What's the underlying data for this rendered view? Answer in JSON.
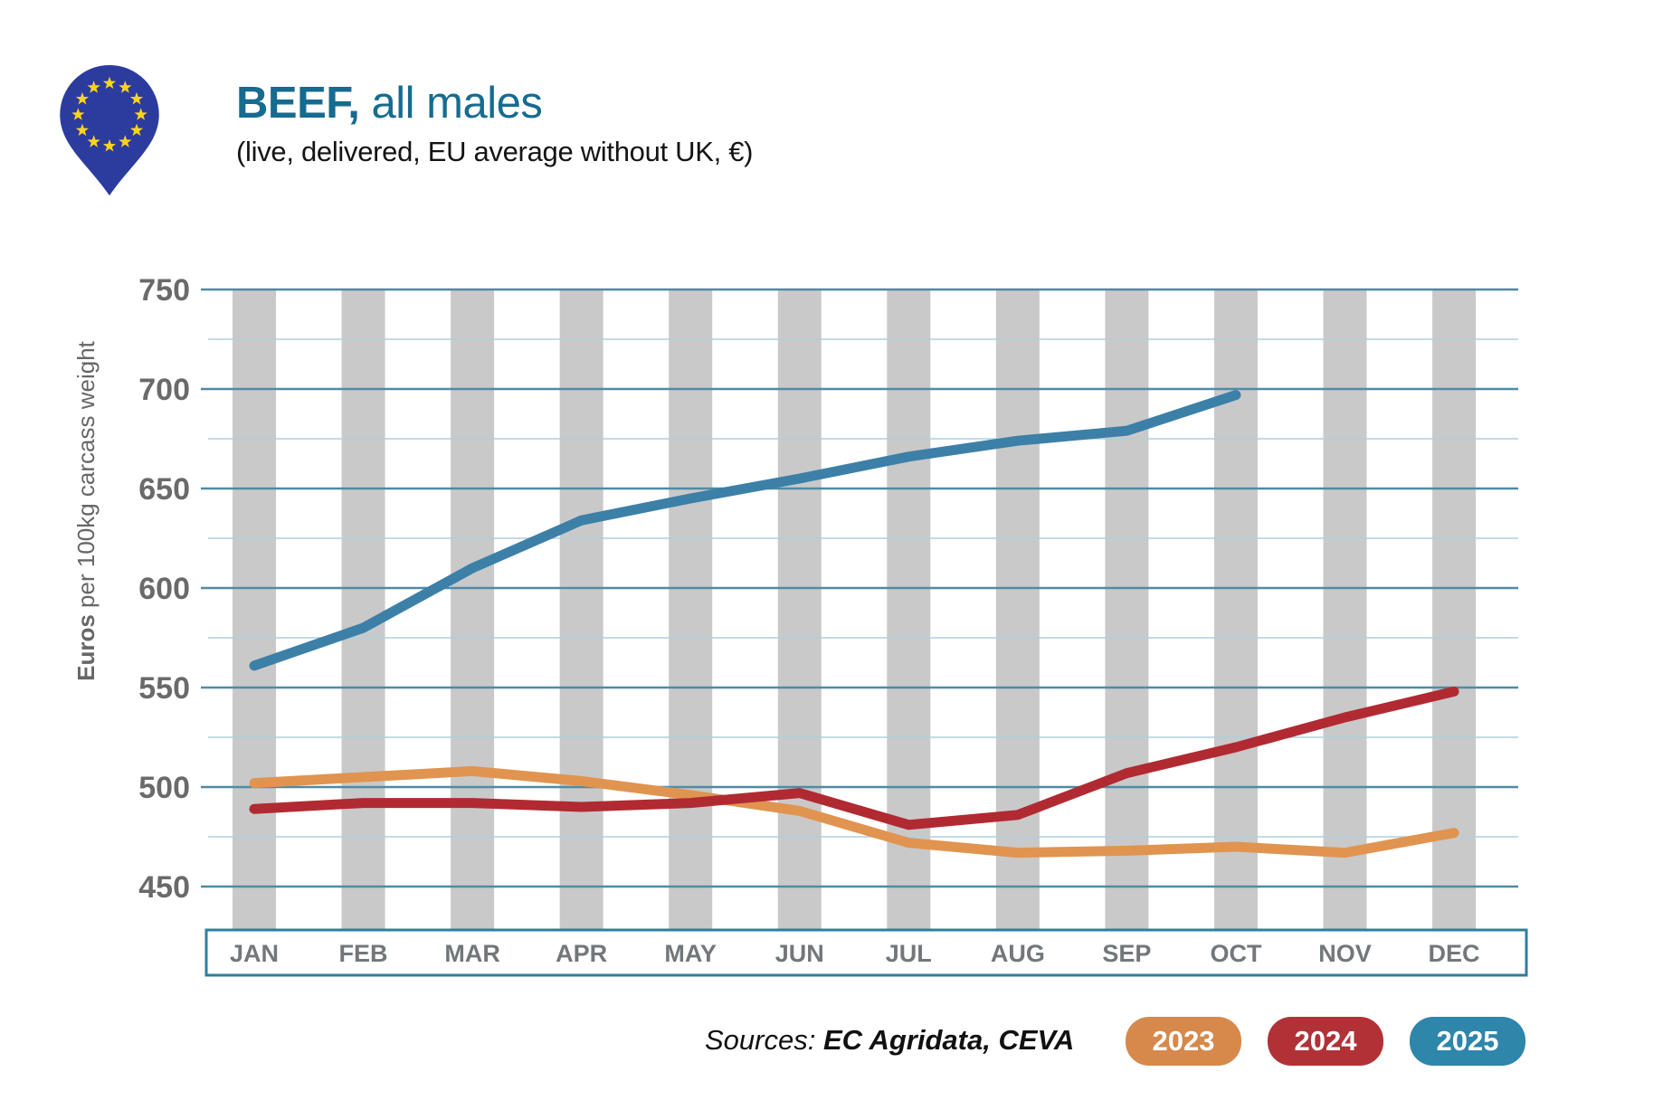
{
  "header": {
    "title_bold": "BEEF,",
    "title_rest": " all males",
    "subtitle": "(live, delivered, EU average without UK, €)"
  },
  "y_axis": {
    "label_bold": "Euros",
    "label_rest": " per 100kg carcass weight",
    "ticks": [
      750,
      700,
      650,
      600,
      550,
      500,
      450
    ]
  },
  "footer": {
    "sources_label": "Sources: ",
    "sources_value": "EC Agridata, CEVA"
  },
  "colors": {
    "eu_blue": "#2C3C9E",
    "star_yellow": "#FFD51C",
    "title_teal": "#166B90",
    "stripe_gray": "#C9C9C9",
    "grid_major": "#4F8BA5",
    "grid_minor": "#B0CFDB",
    "axis_box_border": "#2E7F9B",
    "tick_text": "#6A6A6A",
    "month_text": "#72777A"
  },
  "chart_data": {
    "type": "line",
    "title": "BEEF, all males (live, delivered, EU average without UK, €)",
    "xlabel": "",
    "ylabel": "Euros per 100kg carcass weight",
    "ylim": [
      450,
      750
    ],
    "grid_step_major": 50,
    "grid_step_minor": 25,
    "legend_position": "bottom-right",
    "categories": [
      "JAN",
      "FEB",
      "MAR",
      "APR",
      "MAY",
      "JUN",
      "JUL",
      "AUG",
      "SEP",
      "OCT",
      "NOV",
      "DEC"
    ],
    "series": [
      {
        "name": "2023",
        "color": "#D6894B",
        "line_color": "#E0944F",
        "values": [
          502,
          505,
          508,
          503,
          496,
          488,
          472,
          467,
          468,
          470,
          467,
          477
        ]
      },
      {
        "name": "2024",
        "color": "#B23137",
        "line_color": "#B12A32",
        "values": [
          489,
          492,
          492,
          490,
          492,
          497,
          481,
          486,
          507,
          520,
          535,
          548
        ]
      },
      {
        "name": "2025",
        "color": "#2E86AA",
        "line_color": "#3C80A8",
        "values": [
          561,
          580,
          610,
          634,
          645,
          655,
          666,
          674,
          679,
          697
        ]
      }
    ]
  }
}
